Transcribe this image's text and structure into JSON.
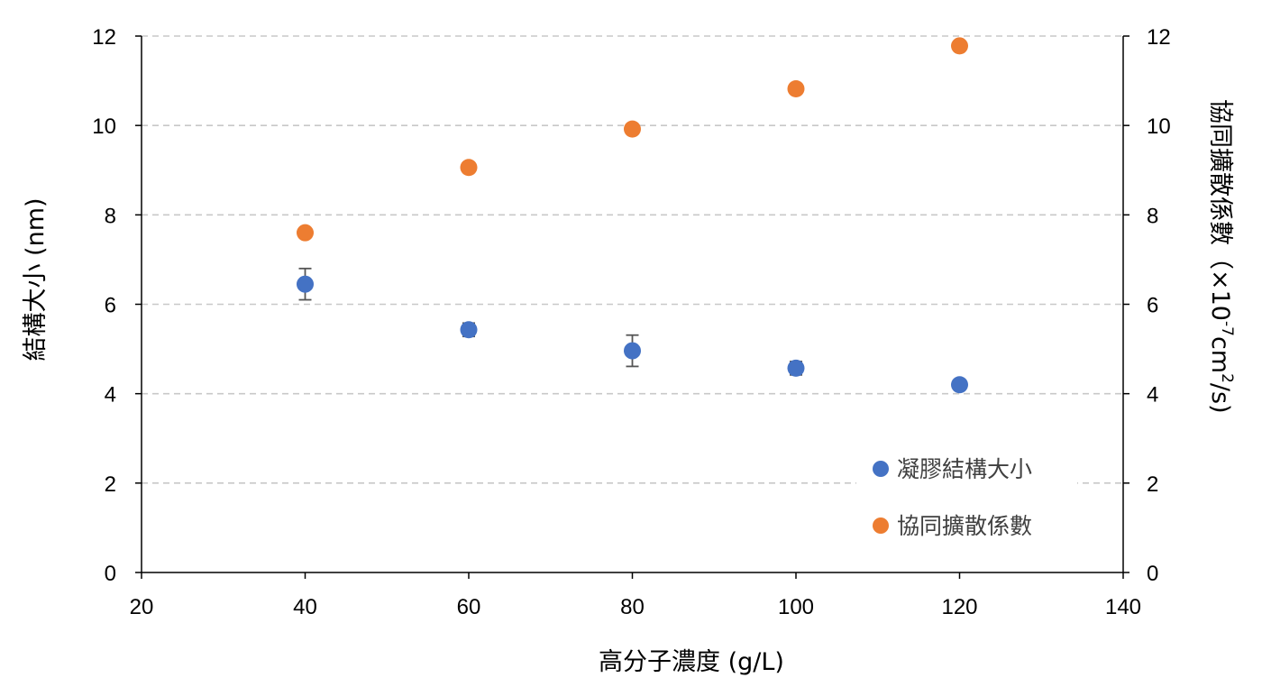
{
  "chart_data": {
    "type": "scatter",
    "x_axis": {
      "label": "高分子濃度 (g/L)",
      "range": [
        20,
        140
      ],
      "ticks": [
        "20",
        "40",
        "60",
        "80",
        "100",
        "120",
        "140"
      ]
    },
    "y_left_axis": {
      "label": "結構大小 (nm)",
      "range": [
        0,
        12
      ],
      "ticks": [
        "0",
        "2",
        "4",
        "6",
        "8",
        "10",
        "12"
      ]
    },
    "y_right_axis": {
      "label": "協同擴散係數（×10",
      "label_exponent": "-7",
      "label_unit": "cm",
      "label_unit_exponent": "2",
      "label_tail": "/s)",
      "range": [
        0,
        12
      ],
      "ticks": [
        "0",
        "2",
        "4",
        "6",
        "8",
        "10",
        "12"
      ]
    },
    "grid": "horizontal dashed",
    "legend_position": "bottom-right",
    "series": [
      {
        "name": "凝膠結構大小",
        "color": "#4472C4",
        "axis": "left",
        "x": [
          40,
          60,
          80,
          100,
          120
        ],
        "y": [
          6.45,
          5.43,
          4.96,
          4.57,
          4.2
        ],
        "err": [
          0.35,
          0.15,
          0.35,
          0.15,
          0
        ]
      },
      {
        "name": "協同擴散係數",
        "color": "#ED7D31",
        "axis": "right",
        "x": [
          40,
          60,
          80,
          100,
          120
        ],
        "y": [
          7.6,
          9.06,
          9.92,
          10.82,
          11.78
        ]
      }
    ]
  }
}
